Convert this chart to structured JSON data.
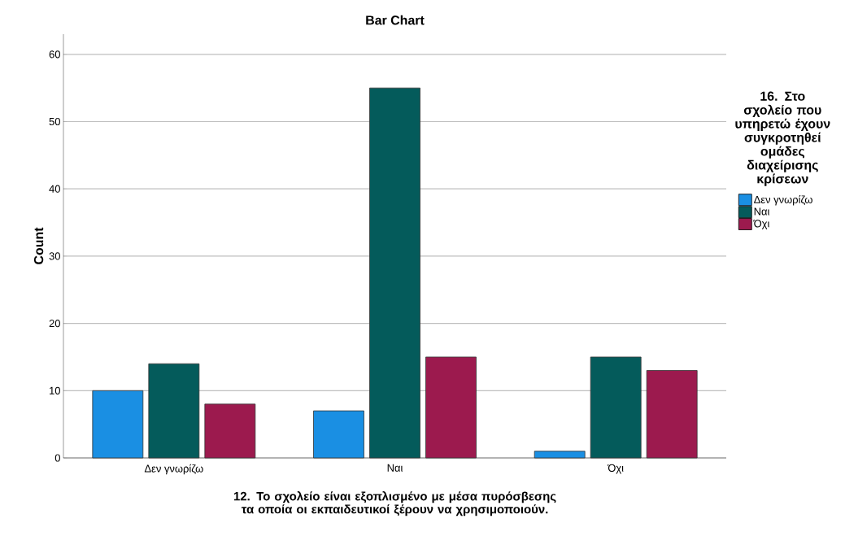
{
  "chart_data": {
    "type": "bar",
    "title": "Bar Chart",
    "xlabel": "12. Το σχολείο είναι εξοπλισμένο με μέσα πυρόσβεσης τα οποία οι εκπαιδευτικοί ξέρουν να χρησιμοποιούν.",
    "ylabel": "Count",
    "legend_title": "16. Στο σχολείο που υπηρετώ έχουν συγκροτηθεί ομάδες διαχείρισης κρίσεων",
    "categories": [
      "Δεν γνωρίζω",
      "Ναι",
      "Όχι"
    ],
    "series": [
      {
        "name": "Δεν γνωρίζω",
        "color": "#1a8fe3",
        "values": [
          10,
          7,
          1
        ]
      },
      {
        "name": "Ναι",
        "color": "#045b5b",
        "values": [
          14,
          55,
          15
        ]
      },
      {
        "name": "Όχι",
        "color": "#9c1a4e",
        "values": [
          8,
          15,
          13
        ]
      }
    ],
    "ylim": [
      0,
      63
    ],
    "yticks": [
      0,
      10,
      20,
      30,
      40,
      50,
      60
    ],
    "grid": "y",
    "legend": "right"
  }
}
